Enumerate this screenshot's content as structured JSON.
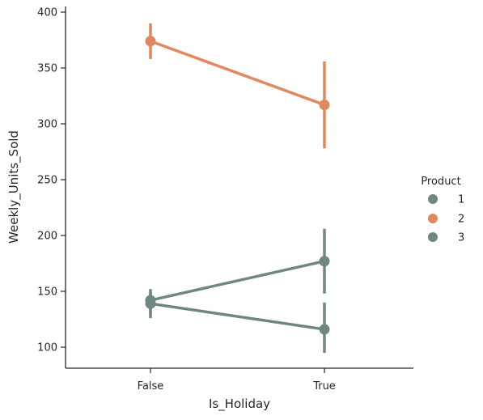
{
  "chart_data": {
    "type": "line",
    "style": "point-plot-with-error-bars",
    "categories": [
      "False",
      "True"
    ],
    "xlabel": "Is_Holiday",
    "ylabel": "Weekly_Units_Sold",
    "ylim": [
      80,
      410
    ],
    "yticks": [
      100,
      150,
      200,
      250,
      300,
      350,
      400
    ],
    "grid": false,
    "legend": {
      "title": "Product",
      "placement": "right",
      "entries": [
        "1",
        "2",
        "3"
      ]
    },
    "series": [
      {
        "name": "1",
        "color": "#6e8783",
        "values": [
          142,
          177
        ],
        "ci_low": [
          130,
          148
        ],
        "ci_high": [
          152,
          206
        ]
      },
      {
        "name": "2",
        "color": "#e0895f",
        "values": [
          374,
          317
        ],
        "ci_low": [
          358,
          278
        ],
        "ci_high": [
          390,
          356
        ]
      },
      {
        "name": "3",
        "color": "#6e8783",
        "values": [
          139,
          116
        ],
        "ci_low": [
          126,
          95
        ],
        "ci_high": [
          149,
          140
        ]
      }
    ]
  }
}
